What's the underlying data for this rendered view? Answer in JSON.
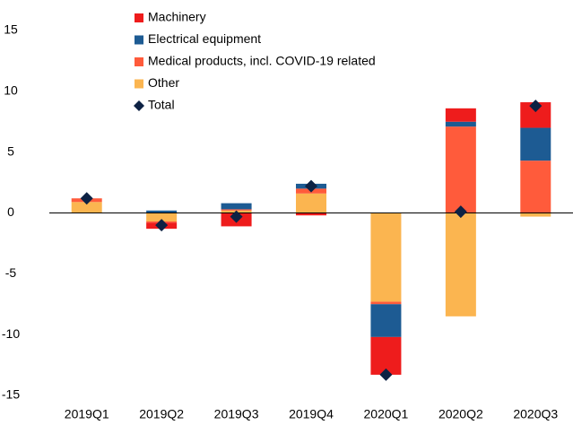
{
  "chart_data": {
    "type": "stacked-bar",
    "categories": [
      "2019Q1",
      "2019Q2",
      "2019Q3",
      "2019Q4",
      "2020Q1",
      "2020Q2",
      "2020Q3"
    ],
    "series": [
      {
        "name": "Machinery",
        "color": "#ee1c1c",
        "values": [
          0,
          -0.5,
          -1.1,
          -0.2,
          -3.1,
          1.1,
          2.1
        ]
      },
      {
        "name": "Electrical equipment",
        "color": "#1d5b93",
        "values": [
          0,
          0.2,
          0.5,
          0.4,
          -2.7,
          0.4,
          2.7
        ]
      },
      {
        "name": "Medical products, incl. COVID-19 related",
        "color": "#ff5b3b",
        "values": [
          0.3,
          -0.1,
          0.1,
          0.4,
          -0.2,
          7.1,
          4.3
        ]
      },
      {
        "name": "Other",
        "color": "#fbb550",
        "values": [
          0.9,
          -0.7,
          0.2,
          1.6,
          -7.3,
          -8.5,
          -0.3
        ]
      },
      {
        "name": "Total",
        "color": "#0d2244",
        "marker": "diamond",
        "values": [
          1.2,
          -1.0,
          -0.3,
          2.2,
          -13.3,
          0.1,
          8.8
        ]
      }
    ],
    "ylim": [
      -15,
      15
    ],
    "yticks": [
      -15,
      -10,
      -5,
      0,
      5,
      10,
      15
    ],
    "grid": false,
    "legend": "top-left"
  }
}
